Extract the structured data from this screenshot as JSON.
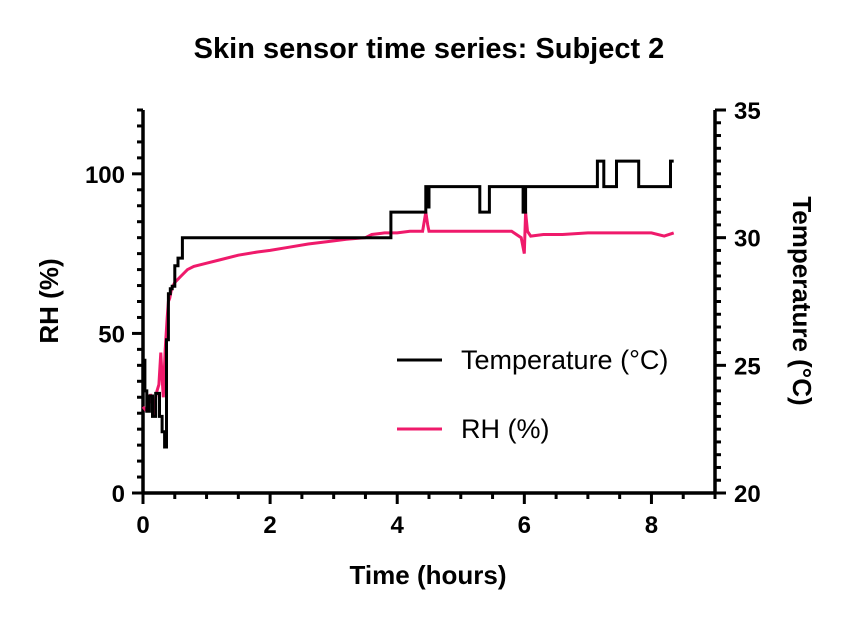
{
  "chart_data": {
    "type": "line",
    "title": "Skin sensor time series: Subject 2",
    "xlabel": "Time (hours)",
    "ylabel_left": "RH (%)",
    "ylabel_right": "Temperature (°C)",
    "xlim": [
      0,
      9
    ],
    "ylim_left": [
      0,
      120
    ],
    "ylim_right": [
      20,
      35
    ],
    "xticks": [
      "0",
      "2",
      "4",
      "6",
      "8"
    ],
    "yticks_left": [
      "0",
      "50",
      "100"
    ],
    "yticks_right": [
      "20",
      "25",
      "30",
      "35"
    ],
    "grid": false,
    "legend_position": "lower-right",
    "series": [
      {
        "name": "Temperature (°C)",
        "axis": "right",
        "color": "#000000",
        "x": [
          0,
          0.03,
          0.03,
          0.06,
          0.06,
          0.1,
          0.1,
          0.15,
          0.15,
          0.2,
          0.2,
          0.26,
          0.26,
          0.3,
          0.3,
          0.34,
          0.34,
          0.37,
          0.37,
          0.4,
          0.4,
          0.43,
          0.43,
          0.46,
          0.46,
          0.5,
          0.5,
          0.55,
          0.55,
          0.62,
          0.62,
          0.7,
          0.7,
          0.72,
          0.72,
          3.9,
          3.9,
          4.45,
          4.45,
          4.47,
          4.47,
          4.5,
          4.5,
          4.55,
          4.55,
          5.3,
          5.3,
          5.45,
          5.45,
          5.98,
          5.98,
          6.02,
          6.02,
          6.1,
          6.1,
          7.15,
          7.15,
          7.25,
          7.25,
          7.45,
          7.45,
          7.8,
          7.8,
          8.3,
          8.3,
          8.35
        ],
        "values": [
          25.2,
          25.2,
          24.0,
          24.0,
          23.2,
          23.2,
          23.8,
          23.8,
          23.0,
          23.0,
          23.9,
          23.9,
          23.0,
          23.0,
          22.4,
          22.4,
          21.8,
          21.8,
          26.0,
          26.0,
          27.8,
          27.8,
          28.0,
          28.0,
          28.1,
          28.1,
          28.9,
          28.9,
          29.2,
          29.2,
          30.0,
          30.0,
          30.0,
          30.0,
          30.0,
          30.0,
          31.0,
          31.0,
          32.0,
          32.0,
          31.2,
          31.2,
          32.0,
          32.0,
          32.0,
          32.0,
          31.0,
          31.0,
          32.0,
          32.0,
          31.0,
          31.0,
          32.0,
          32.0,
          32.0,
          32.0,
          33.0,
          33.0,
          32.0,
          32.0,
          33.0,
          33.0,
          32.0,
          32.0,
          33.0,
          33.0
        ]
      },
      {
        "name": "RH (%)",
        "axis": "left",
        "color": "#ef1a6b",
        "x": [
          0,
          0.04,
          0.08,
          0.12,
          0.15,
          0.18,
          0.2,
          0.22,
          0.25,
          0.28,
          0.3,
          0.32,
          0.35,
          0.38,
          0.4,
          0.42,
          0.45,
          0.5,
          0.6,
          0.7,
          0.8,
          1.0,
          1.2,
          1.5,
          1.8,
          2.0,
          2.3,
          2.6,
          3.0,
          3.2,
          3.5,
          3.6,
          3.8,
          4.0,
          4.2,
          4.4,
          4.45,
          4.48,
          4.5,
          4.55,
          4.6,
          5.0,
          5.5,
          5.8,
          5.95,
          6.0,
          6.02,
          6.05,
          6.1,
          6.3,
          6.6,
          7.0,
          7.5,
          8.0,
          8.2,
          8.35
        ],
        "values": [
          27,
          26,
          26,
          31,
          28,
          24,
          30,
          32,
          34,
          44,
          36,
          30,
          45,
          55,
          60,
          61,
          64,
          66,
          68,
          70,
          71,
          72,
          73,
          74.5,
          75.5,
          76,
          77,
          78,
          79,
          79.5,
          80,
          81,
          81.5,
          81.5,
          82,
          82,
          88,
          84,
          82,
          82,
          82,
          82,
          82,
          82,
          80,
          75,
          88,
          82,
          80.5,
          81,
          81,
          81.5,
          81.5,
          81.5,
          80.5,
          81.5
        ]
      }
    ]
  }
}
